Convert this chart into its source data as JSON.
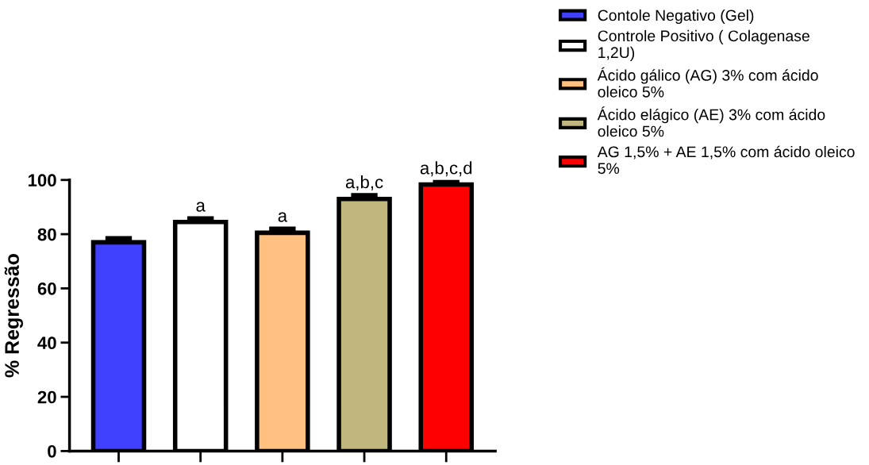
{
  "chart_data": {
    "type": "bar",
    "ylabel": "% Regressão",
    "categories": [
      null,
      null,
      null,
      null,
      null
    ],
    "series": [
      {
        "name": "Contole Negativo (Gel)",
        "color": "#4040ff",
        "values": [
          77,
          null,
          null,
          null,
          null
        ],
        "errors": [
          [
            77,
            78.5
          ],
          null,
          null,
          null,
          null
        ],
        "value_labels": [
          null,
          null,
          null,
          null,
          null
        ]
      },
      {
        "name": "Controle Positivo ( Colagenase 1,2U)",
        "color": "#ffffff",
        "values": [
          null,
          84.5,
          null,
          null,
          null
        ],
        "errors": [
          null,
          [
            84.5,
            85.8
          ],
          null,
          null,
          null
        ],
        "value_labels": [
          null,
          "a",
          null,
          null,
          null
        ]
      },
      {
        "name": "Ácido gálico (AG) 3% com ácido oleico 5%",
        "color": "#ffc080",
        "values": [
          null,
          null,
          80.5,
          null,
          null
        ],
        "errors": [
          null,
          null,
          [
            80.5,
            82
          ],
          null,
          null
        ],
        "value_labels": [
          null,
          null,
          "a",
          null,
          null
        ]
      },
      {
        "name": "Ácido elágico (AE) 3% com ácido oleico 5%",
        "color": "#c0b67e",
        "values": [
          null,
          null,
          null,
          93,
          null
        ],
        "errors": [
          null,
          null,
          null,
          [
            93,
            94.4
          ],
          null
        ],
        "value_labels": [
          null,
          null,
          null,
          "a,b,c",
          null
        ]
      },
      {
        "name": "AG 1,5% + AE 1,5% com ácido oleico 5%",
        "color": "#ff0000",
        "values": [
          null,
          null,
          null,
          null,
          98.3
        ],
        "errors": [
          null,
          null,
          null,
          null,
          [
            98.3,
            99.6
          ]
        ],
        "value_labels": [
          null,
          null,
          null,
          null,
          "a,b,c,d"
        ]
      }
    ],
    "ylim": [
      0,
      100
    ],
    "yticks": [
      0,
      20,
      40,
      60,
      80,
      100
    ],
    "grid": false,
    "legend": "right",
    "tick_labels": "y"
  }
}
